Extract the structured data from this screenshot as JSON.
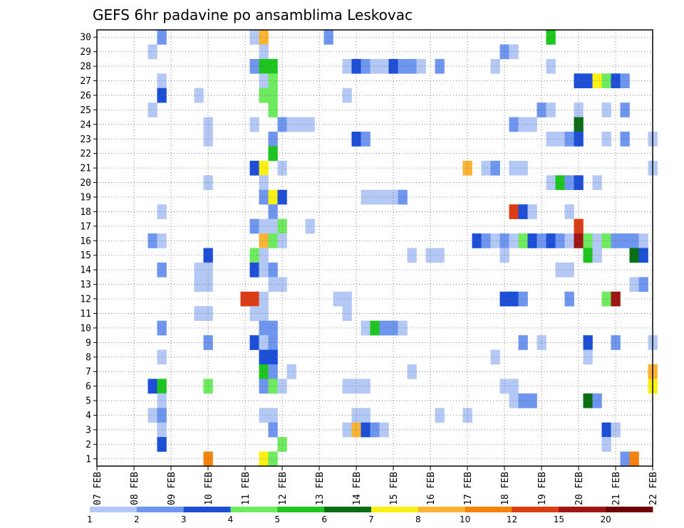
{
  "chart_data": {
    "type": "heatmap",
    "title": "GEFS 6hr padavine po ansamblima Leskovac",
    "xlabel": "",
    "ylabel": "",
    "x_ticks": [
      "07 FEB",
      "08 FEB",
      "09 FEB",
      "10 FEB",
      "11 FEB",
      "12 FEB",
      "13 FEB",
      "14 FEB",
      "15 FEB",
      "16 FEB",
      "17 FEB",
      "18 FEB",
      "19 FEB",
      "20 FEB",
      "21 FEB",
      "22 FEB"
    ],
    "x_range": [
      0,
      60
    ],
    "y_ticks": [
      "1",
      "2",
      "3",
      "4",
      "5",
      "6",
      "7",
      "8",
      "9",
      "10",
      "11",
      "12",
      "13",
      "14",
      "15",
      "16",
      "17",
      "18",
      "19",
      "20",
      "21",
      "22",
      "23",
      "24",
      "25",
      "26",
      "27",
      "28",
      "29",
      "30"
    ],
    "y_range": [
      0,
      30
    ],
    "grid": true,
    "color_levels": [
      {
        "min": 1,
        "color": "#b4c8f5"
      },
      {
        "min": 2,
        "color": "#6e96ee"
      },
      {
        "min": 3,
        "color": "#1c4ed8"
      },
      {
        "min": 4,
        "color": "#6eea5e"
      },
      {
        "min": 5,
        "color": "#1ec51e"
      },
      {
        "min": 6,
        "color": "#0a6e14"
      },
      {
        "min": 7,
        "color": "#faf012"
      },
      {
        "min": 8,
        "color": "#fab432"
      },
      {
        "min": 10,
        "color": "#f5820a"
      },
      {
        "min": 12,
        "color": "#dc3c14"
      },
      {
        "min": 15,
        "color": "#a01414"
      },
      {
        "min": 20,
        "color": "#6e0000"
      }
    ],
    "colorbar_labels": [
      "1",
      "2",
      "3",
      "4",
      "5",
      "6",
      "7",
      "8",
      "10",
      "12",
      "15",
      "20"
    ],
    "cells": [
      [
        6.5,
        30,
        2.5
      ],
      [
        16.5,
        30,
        1.5
      ],
      [
        17.5,
        30,
        8.5
      ],
      [
        24.5,
        30,
        2.5
      ],
      [
        48.5,
        30,
        5.5
      ],
      [
        5.5,
        29,
        1.5
      ],
      [
        17.5,
        29,
        1.5
      ],
      [
        43.5,
        29,
        2.5
      ],
      [
        44.5,
        29,
        1.5
      ],
      [
        16.5,
        28,
        2.5
      ],
      [
        17.5,
        28,
        5.5
      ],
      [
        18.5,
        28,
        5.5
      ],
      [
        26.5,
        28,
        1.5
      ],
      [
        27.5,
        28,
        3.5
      ],
      [
        28.5,
        28,
        2.5
      ],
      [
        29.5,
        28,
        1.5
      ],
      [
        30.5,
        28,
        1.5
      ],
      [
        31.5,
        28,
        3.5
      ],
      [
        32.5,
        28,
        2.5
      ],
      [
        33.5,
        28,
        2.5
      ],
      [
        34.5,
        28,
        1.5
      ],
      [
        36.5,
        28,
        2.5
      ],
      [
        42.5,
        28,
        1.5
      ],
      [
        48.5,
        28,
        1.5
      ],
      [
        6.5,
        27,
        1.5
      ],
      [
        17.5,
        27,
        1.5
      ],
      [
        18.5,
        27,
        4.5
      ],
      [
        51.5,
        27,
        3.5
      ],
      [
        52.5,
        27,
        3.5
      ],
      [
        53.5,
        27,
        7.5
      ],
      [
        54.5,
        27,
        4.5
      ],
      [
        55.5,
        27,
        3.5
      ],
      [
        56.5,
        27,
        2.5
      ],
      [
        6.5,
        26,
        3.5
      ],
      [
        10.5,
        26,
        1.5
      ],
      [
        17.5,
        26,
        4.5
      ],
      [
        18.5,
        26,
        4.5
      ],
      [
        26.5,
        26,
        1.5
      ],
      [
        5.5,
        25,
        1.5
      ],
      [
        18.5,
        25,
        4.5
      ],
      [
        47.5,
        25,
        2.5
      ],
      [
        48.5,
        25,
        1.5
      ],
      [
        51.5,
        25,
        1.5
      ],
      [
        54.5,
        25,
        1.5
      ],
      [
        56.5,
        25,
        2.5
      ],
      [
        11.5,
        24,
        1.5
      ],
      [
        16.5,
        24,
        1.5
      ],
      [
        19.5,
        24,
        2.5
      ],
      [
        20.5,
        24,
        1.5
      ],
      [
        21.5,
        24,
        1.5
      ],
      [
        22.5,
        24,
        1.5
      ],
      [
        44.5,
        24,
        2.5
      ],
      [
        45.5,
        24,
        1.5
      ],
      [
        46.5,
        24,
        1.5
      ],
      [
        51.5,
        24,
        6.5
      ],
      [
        11.5,
        23,
        1.5
      ],
      [
        18.5,
        23,
        2.5
      ],
      [
        27.5,
        23,
        3.5
      ],
      [
        28.5,
        23,
        2.5
      ],
      [
        48.5,
        23,
        1.5
      ],
      [
        49.5,
        23,
        1.5
      ],
      [
        50.5,
        23,
        2.5
      ],
      [
        51.5,
        23,
        3.5
      ],
      [
        54.5,
        23,
        1.5
      ],
      [
        56.5,
        23,
        2.5
      ],
      [
        59.5,
        23,
        1.5
      ],
      [
        18.5,
        22,
        5.5
      ],
      [
        16.5,
        21,
        3.5
      ],
      [
        17.5,
        21,
        7.5
      ],
      [
        19.5,
        21,
        1.5
      ],
      [
        39.5,
        21,
        8.5
      ],
      [
        41.5,
        21,
        1.5
      ],
      [
        42.5,
        21,
        2.5
      ],
      [
        44.5,
        21,
        1.5
      ],
      [
        45.5,
        21,
        1.5
      ],
      [
        59.5,
        21,
        1.5
      ],
      [
        11.5,
        20,
        1.5
      ],
      [
        17.5,
        20,
        1.5
      ],
      [
        48.5,
        20,
        1.5
      ],
      [
        49.5,
        20,
        5.5
      ],
      [
        50.5,
        20,
        2.5
      ],
      [
        51.5,
        20,
        3.5
      ],
      [
        53.5,
        20,
        1.5
      ],
      [
        17.5,
        19,
        2.5
      ],
      [
        18.5,
        19,
        7.5
      ],
      [
        19.5,
        19,
        3.5
      ],
      [
        28.5,
        19,
        1.5
      ],
      [
        29.5,
        19,
        1.5
      ],
      [
        30.5,
        19,
        1.5
      ],
      [
        31.5,
        19,
        1.5
      ],
      [
        32.5,
        19,
        2.5
      ],
      [
        6.5,
        18,
        1.5
      ],
      [
        18.5,
        18,
        2.5
      ],
      [
        44.5,
        18,
        12.5
      ],
      [
        45.5,
        18,
        3.5
      ],
      [
        46.5,
        18,
        1.5
      ],
      [
        50.5,
        18,
        1.5
      ],
      [
        16.5,
        17,
        2.5
      ],
      [
        17.5,
        17,
        1.5
      ],
      [
        18.5,
        17,
        1.5
      ],
      [
        19.5,
        17,
        4.5
      ],
      [
        22.5,
        17,
        1.5
      ],
      [
        51.5,
        17,
        12.5
      ],
      [
        5.5,
        16,
        2.5
      ],
      [
        6.5,
        16,
        1.5
      ],
      [
        17.5,
        16,
        8.5
      ],
      [
        18.5,
        16,
        4.5
      ],
      [
        19.5,
        16,
        1.5
      ],
      [
        40.5,
        16,
        3.5
      ],
      [
        41.5,
        16,
        2.5
      ],
      [
        42.5,
        16,
        1.5
      ],
      [
        43.5,
        16,
        2.5
      ],
      [
        44.5,
        16,
        1.5
      ],
      [
        45.5,
        16,
        4.5
      ],
      [
        46.5,
        16,
        3.5
      ],
      [
        47.5,
        16,
        2.5
      ],
      [
        48.5,
        16,
        3.5
      ],
      [
        49.5,
        16,
        2.5
      ],
      [
        50.5,
        16,
        1.5
      ],
      [
        51.5,
        16,
        15.5
      ],
      [
        52.5,
        16,
        4.5
      ],
      [
        53.5,
        16,
        1.5
      ],
      [
        54.5,
        16,
        4.5
      ],
      [
        55.5,
        16,
        2.5
      ],
      [
        56.5,
        16,
        2.5
      ],
      [
        57.5,
        16,
        2.5
      ],
      [
        58.5,
        16,
        1.5
      ],
      [
        11.5,
        15,
        3.5
      ],
      [
        16.5,
        15,
        4.5
      ],
      [
        17.5,
        15,
        1.5
      ],
      [
        33.5,
        15,
        1.5
      ],
      [
        35.5,
        15,
        1.5
      ],
      [
        36.5,
        15,
        1.5
      ],
      [
        43.5,
        15,
        1.5
      ],
      [
        52.5,
        15,
        5.5
      ],
      [
        53.5,
        15,
        1.5
      ],
      [
        57.5,
        15,
        6.5
      ],
      [
        58.5,
        15,
        3.5
      ],
      [
        6.5,
        14,
        2.5
      ],
      [
        10.5,
        14,
        1.5
      ],
      [
        11.5,
        14,
        1.5
      ],
      [
        16.5,
        14,
        3.5
      ],
      [
        17.5,
        14,
        1.5
      ],
      [
        18.5,
        14,
        2.5
      ],
      [
        49.5,
        14,
        1.5
      ],
      [
        50.5,
        14,
        1.5
      ],
      [
        10.5,
        13,
        1.5
      ],
      [
        11.5,
        13,
        1.5
      ],
      [
        18.5,
        13,
        1.5
      ],
      [
        19.5,
        13,
        1.5
      ],
      [
        57.5,
        13,
        1.5
      ],
      [
        58.5,
        13,
        2.5
      ],
      [
        15.5,
        12,
        12.5
      ],
      [
        16.5,
        12,
        12.5
      ],
      [
        17.5,
        12,
        1.5
      ],
      [
        25.5,
        12,
        1.5
      ],
      [
        26.5,
        12,
        1.5
      ],
      [
        43.5,
        12,
        3.5
      ],
      [
        44.5,
        12,
        3.5
      ],
      [
        45.5,
        12,
        2.5
      ],
      [
        50.5,
        12,
        2.5
      ],
      [
        54.5,
        12,
        4.5
      ],
      [
        55.5,
        12,
        15.5
      ],
      [
        10.5,
        11,
        1.5
      ],
      [
        11.5,
        11,
        1.5
      ],
      [
        16.5,
        11,
        1.5
      ],
      [
        17.5,
        11,
        1.5
      ],
      [
        26.5,
        11,
        1.5
      ],
      [
        6.5,
        10,
        2.5
      ],
      [
        17.5,
        10,
        2.5
      ],
      [
        18.5,
        10,
        2.5
      ],
      [
        28.5,
        10,
        1.5
      ],
      [
        29.5,
        10,
        5.5
      ],
      [
        30.5,
        10,
        2.5
      ],
      [
        31.5,
        10,
        2.5
      ],
      [
        32.5,
        10,
        1.5
      ],
      [
        11.5,
        9,
        2.5
      ],
      [
        16.5,
        9,
        3.5
      ],
      [
        17.5,
        9,
        1.5
      ],
      [
        18.5,
        9,
        2.5
      ],
      [
        45.5,
        9,
        2.5
      ],
      [
        47.5,
        9,
        1.5
      ],
      [
        52.5,
        9,
        3.5
      ],
      [
        55.5,
        9,
        2.5
      ],
      [
        59.5,
        9,
        1.5
      ],
      [
        6.5,
        8,
        1.5
      ],
      [
        17.5,
        8,
        3.5
      ],
      [
        18.5,
        8,
        3.5
      ],
      [
        42.5,
        8,
        1.5
      ],
      [
        52.5,
        8,
        1.5
      ],
      [
        17.5,
        7,
        5.5
      ],
      [
        18.5,
        7,
        2.5
      ],
      [
        20.5,
        7,
        1.5
      ],
      [
        33.5,
        7,
        1.5
      ],
      [
        59.5,
        7,
        8.5
      ],
      [
        5.5,
        6,
        3.5
      ],
      [
        6.5,
        6,
        5.5
      ],
      [
        11.5,
        6,
        4.5
      ],
      [
        17.5,
        6,
        2.5
      ],
      [
        18.5,
        6,
        4.5
      ],
      [
        19.5,
        6,
        1.5
      ],
      [
        26.5,
        6,
        1.5
      ],
      [
        27.5,
        6,
        1.5
      ],
      [
        28.5,
        6,
        1.5
      ],
      [
        43.5,
        6,
        1.5
      ],
      [
        44.5,
        6,
        1.5
      ],
      [
        59.5,
        6,
        7.5
      ],
      [
        6.5,
        5,
        1.5
      ],
      [
        44.5,
        5,
        1.5
      ],
      [
        45.5,
        5,
        2.5
      ],
      [
        46.5,
        5,
        2.5
      ],
      [
        52.5,
        5,
        6.5
      ],
      [
        53.5,
        5,
        2.5
      ],
      [
        5.5,
        4,
        1.5
      ],
      [
        6.5,
        4,
        2.5
      ],
      [
        17.5,
        4,
        1.5
      ],
      [
        18.5,
        4,
        1.5
      ],
      [
        27.5,
        4,
        1.5
      ],
      [
        28.5,
        4,
        1.5
      ],
      [
        36.5,
        4,
        1.5
      ],
      [
        39.5,
        4,
        1.5
      ],
      [
        6.5,
        3,
        1.5
      ],
      [
        18.5,
        3,
        2.5
      ],
      [
        26.5,
        3,
        1.5
      ],
      [
        27.5,
        3,
        8.5
      ],
      [
        28.5,
        3,
        3.5
      ],
      [
        29.5,
        3,
        2.5
      ],
      [
        30.5,
        3,
        1.5
      ],
      [
        54.5,
        3,
        3.5
      ],
      [
        55.5,
        3,
        1.5
      ],
      [
        6.5,
        2,
        3.5
      ],
      [
        19.5,
        2,
        4.5
      ],
      [
        54.5,
        2,
        1.5
      ],
      [
        11.5,
        1,
        10.5
      ],
      [
        17.5,
        1,
        7.5
      ],
      [
        18.5,
        1,
        4.5
      ],
      [
        56.5,
        1,
        2.5
      ],
      [
        57.5,
        1,
        10.5
      ]
    ]
  }
}
